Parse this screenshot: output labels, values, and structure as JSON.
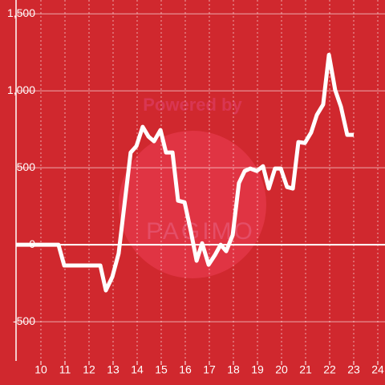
{
  "chart_data": {
    "type": "line",
    "watermark": [
      "Powered by",
      "PAGIMO"
    ],
    "x": [
      8.967,
      10.73,
      10.97,
      12.47,
      12.7,
      12.97,
      13.23,
      13.73,
      13.97,
      14.23,
      14.47,
      14.7,
      14.97,
      15.2,
      15.47,
      15.7,
      15.97,
      16.23,
      16.47,
      16.7,
      16.97,
      17.23,
      17.47,
      17.7,
      17.97,
      18.23,
      18.47,
      18.7,
      18.97,
      19.23,
      19.47,
      19.73,
      19.97,
      20.23,
      20.47,
      20.7,
      20.97,
      21.23,
      21.47,
      21.73,
      21.97,
      22.23,
      22.47,
      22.73,
      23
    ],
    "series": [
      {
        "color": "#ffffff",
        "values": [
          0,
          0,
          -135,
          -135,
          -297,
          -208,
          -57,
          599,
          641,
          766,
          703,
          672,
          745,
          599,
          599,
          286,
          276,
          89,
          -104,
          10,
          -130,
          -68,
          0,
          -42,
          63,
          401,
          479,
          495,
          479,
          510,
          365,
          495,
          495,
          375,
          365,
          667,
          661,
          729,
          844,
          911,
          1234,
          1005,
          896,
          714,
          714
        ]
      }
    ],
    "xlim": [
      8.967,
      24.3
    ],
    "xticks": [
      10,
      11,
      12,
      13,
      14,
      15,
      16,
      17,
      18,
      19,
      20,
      21,
      22,
      23,
      24
    ],
    "ylim": [
      -755,
      1590
    ],
    "yticks": [
      -500,
      0,
      500,
      {
        "value": 1000,
        "label": "1,000"
      },
      {
        "value": 1500,
        "label": "1,500"
      }
    ],
    "grid": true,
    "background": "#d0282e"
  }
}
